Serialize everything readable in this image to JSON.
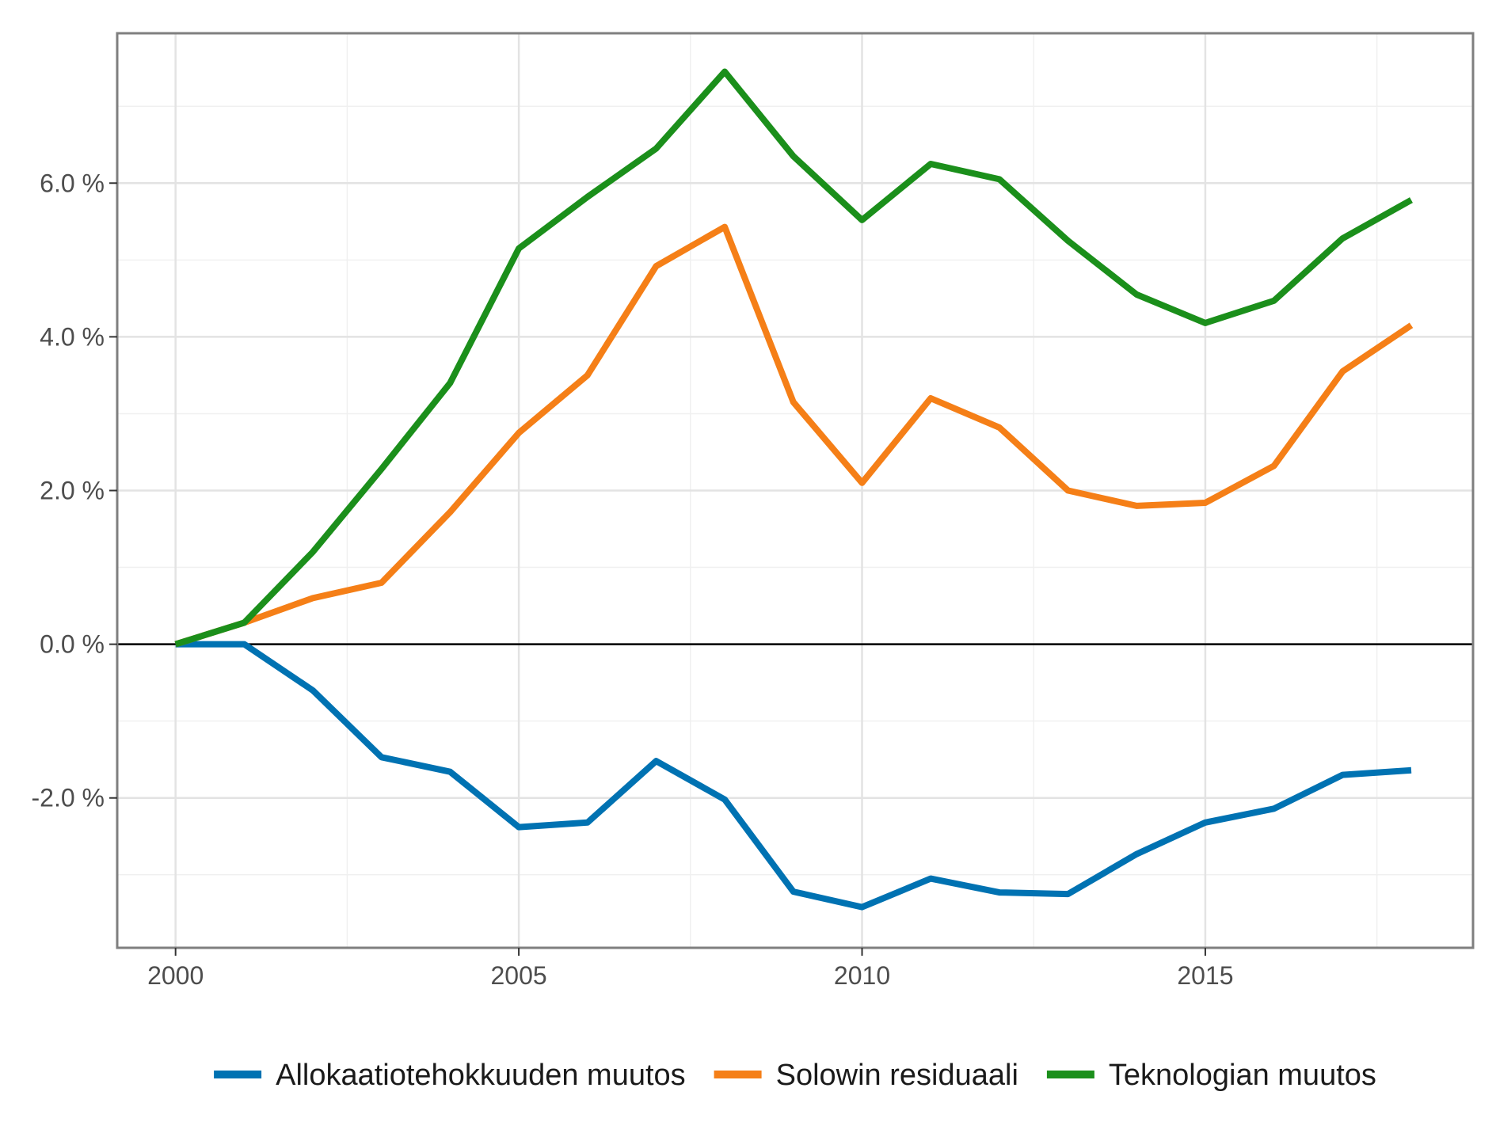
{
  "chart_data": {
    "type": "line",
    "title": "",
    "xlabel": "",
    "ylabel": "",
    "xlim": [
      1999.15,
      2018.9
    ],
    "ylim": [
      -3.95,
      7.95
    ],
    "x_ticks": [
      2000,
      2005,
      2010,
      2015
    ],
    "x_tick_labels": [
      "2000",
      "2005",
      "2010",
      "2015"
    ],
    "y_ticks": [
      -2,
      0,
      2,
      4,
      6
    ],
    "y_tick_labels": [
      "-2.0 %",
      "0.0 %",
      "2.0 %",
      "4.0 %",
      "6.0 %"
    ],
    "grid": true,
    "zero_line": true,
    "legend_position": "bottom",
    "x": [
      2000,
      2001,
      2002,
      2003,
      2004,
      2005,
      2006,
      2007,
      2008,
      2009,
      2010,
      2011,
      2012,
      2013,
      2014,
      2015,
      2016,
      2017,
      2018
    ],
    "series": [
      {
        "name": "Allokaatiotehokkuuden muutos",
        "color": "#0072B2",
        "values": [
          0.0,
          0.0,
          -0.6,
          -1.47,
          -1.66,
          -2.38,
          -2.32,
          -1.52,
          -2.02,
          -3.22,
          -3.42,
          -3.05,
          -3.23,
          -3.25,
          -2.73,
          -2.32,
          -2.14,
          -1.7,
          -1.64
        ]
      },
      {
        "name": "Solowin residuaali",
        "color": "#F57F17",
        "values": [
          0.0,
          0.28,
          0.6,
          0.8,
          1.72,
          2.75,
          3.5,
          4.92,
          5.43,
          3.15,
          2.1,
          3.2,
          2.82,
          2.0,
          1.8,
          1.84,
          2.32,
          3.55,
          4.15
        ]
      },
      {
        "name": "Teknologian muutos",
        "color": "#1B8F1B",
        "values": [
          0.0,
          0.28,
          1.2,
          2.28,
          3.4,
          5.15,
          5.82,
          6.45,
          7.45,
          6.35,
          5.52,
          6.25,
          6.05,
          5.25,
          4.55,
          4.18,
          4.47,
          5.28,
          5.78
        ]
      }
    ]
  }
}
